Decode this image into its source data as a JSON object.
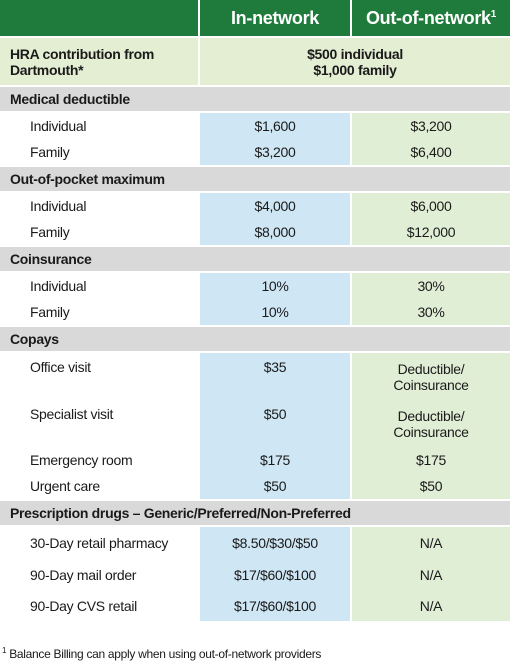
{
  "header": {
    "in_network": "In-network",
    "out_of_network": "Out-of-network",
    "footnote_mark": "1"
  },
  "hra": {
    "label": [
      "HRA contribution from",
      "Dartmouth*"
    ],
    "value": [
      "$500 individual",
      "$1,000 family"
    ]
  },
  "sections": [
    {
      "title": "Medical deductible",
      "rows": [
        {
          "label": "Individual",
          "in_network": "$1,600",
          "out_of_network": "$3,200"
        },
        {
          "label": "Family",
          "in_network": "$3,200",
          "out_of_network": "$6,400"
        }
      ]
    },
    {
      "title": "Out-of-pocket maximum",
      "rows": [
        {
          "label": "Individual",
          "in_network": "$4,000",
          "out_of_network": "$6,000"
        },
        {
          "label": "Family",
          "in_network": "$8,000",
          "out_of_network": "$12,000"
        }
      ]
    },
    {
      "title": "Coinsurance",
      "rows": [
        {
          "label": "Individual",
          "in_network": "10%",
          "out_of_network": "30%"
        },
        {
          "label": "Family",
          "in_network": "10%",
          "out_of_network": "30%"
        }
      ]
    },
    {
      "title": "Copays",
      "rows": [
        {
          "label": "Office visit",
          "in_network": "$35",
          "out_of_network": [
            "Deductible/",
            "Coinsurance"
          ]
        },
        {
          "label": "Specialist visit",
          "in_network": "$50",
          "out_of_network": [
            "Deductible/",
            "Coinsurance"
          ]
        },
        {
          "label": "Emergency room",
          "in_network": "$175",
          "out_of_network": "$175"
        },
        {
          "label": "Urgent care",
          "in_network": "$50",
          "out_of_network": "$50"
        }
      ]
    },
    {
      "title": "Prescription drugs – Generic/Preferred/Non-Preferred",
      "rows": [
        {
          "label": "30-Day retail pharmacy",
          "in_network": "$8.50/$30/$50",
          "out_of_network": "N/A"
        },
        {
          "label": "90-Day mail order",
          "in_network": "$17/$60/$100",
          "out_of_network": "N/A"
        },
        {
          "label": "90-Day CVS retail",
          "in_network": "$17/$60/$100",
          "out_of_network": "N/A"
        }
      ]
    }
  ],
  "footnote": {
    "mark": "1",
    "text": "Balance Billing can apply when using out-of-network providers"
  }
}
